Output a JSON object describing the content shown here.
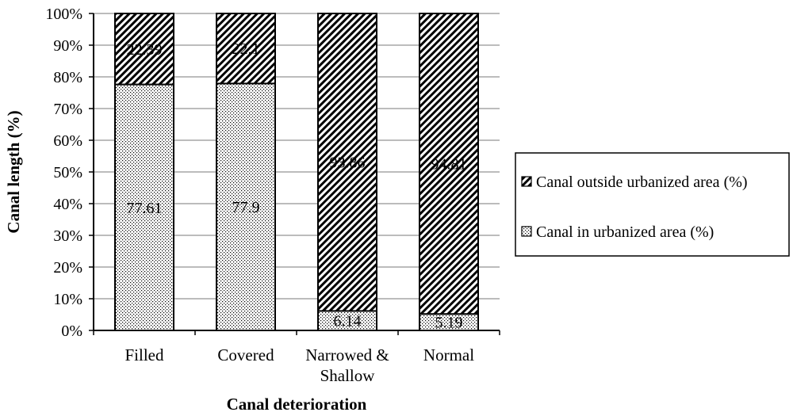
{
  "chart_data": {
    "type": "bar",
    "stacked": true,
    "normalized": true,
    "categories": [
      [
        "Filled"
      ],
      [
        "Covered"
      ],
      [
        "Narrowed &",
        "Shallow"
      ],
      [
        "Normal"
      ]
    ],
    "series": [
      {
        "name": "Canal in urbanized area (%)",
        "values": [
          77.61,
          77.9,
          6.14,
          5.19
        ],
        "labels": [
          "77.61",
          "77.9",
          "6.14",
          "5.19"
        ],
        "pattern": "dots"
      },
      {
        "name": "Canal outside urbanized area (%)",
        "values": [
          22.39,
          22.1,
          93.86,
          94.81
        ],
        "labels": [
          "22.39",
          "22.1",
          "93.86",
          "94.81"
        ],
        "pattern": "hatch"
      }
    ],
    "yticks": [
      "0%",
      "10%",
      "20%",
      "30%",
      "40%",
      "50%",
      "60%",
      "70%",
      "80%",
      "90%",
      "100%"
    ],
    "ylim": [
      0,
      100
    ],
    "xlabel": "Canal deterioration",
    "ylabel": "Canal length (%)",
    "grid": true,
    "legend": {
      "placement": "right",
      "order": [
        "Canal outside urbanized area (%)",
        "Canal in urbanized area (%)"
      ]
    },
    "colors": {
      "bar_fill": "#ffffff",
      "stroke": "#000000",
      "grid": "#a6a6a6"
    }
  }
}
